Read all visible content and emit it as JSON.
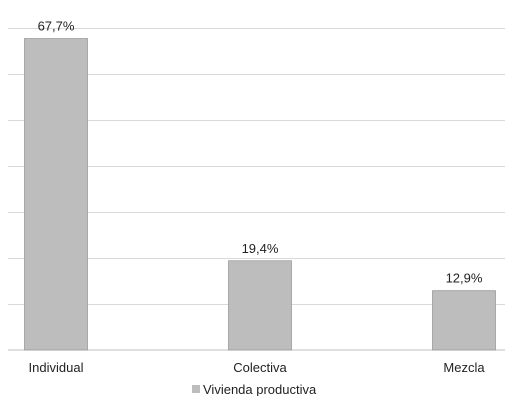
{
  "colors": {
    "bar": "#bdbdbd",
    "grid": "#d9d9d9"
  },
  "chart_data": {
    "type": "bar",
    "categories": [
      "Individual",
      "Colectiva",
      "Mezcla"
    ],
    "series": [
      {
        "name": "Vivienda productiva",
        "values": [
          67.7,
          19.4,
          12.9
        ]
      }
    ],
    "data_labels": [
      "67,7%",
      "19,4%",
      "12,9%"
    ],
    "ylim": [
      0,
      70
    ],
    "grid": true,
    "legend_position": "bottom",
    "title": "",
    "xlabel": "",
    "ylabel": ""
  }
}
